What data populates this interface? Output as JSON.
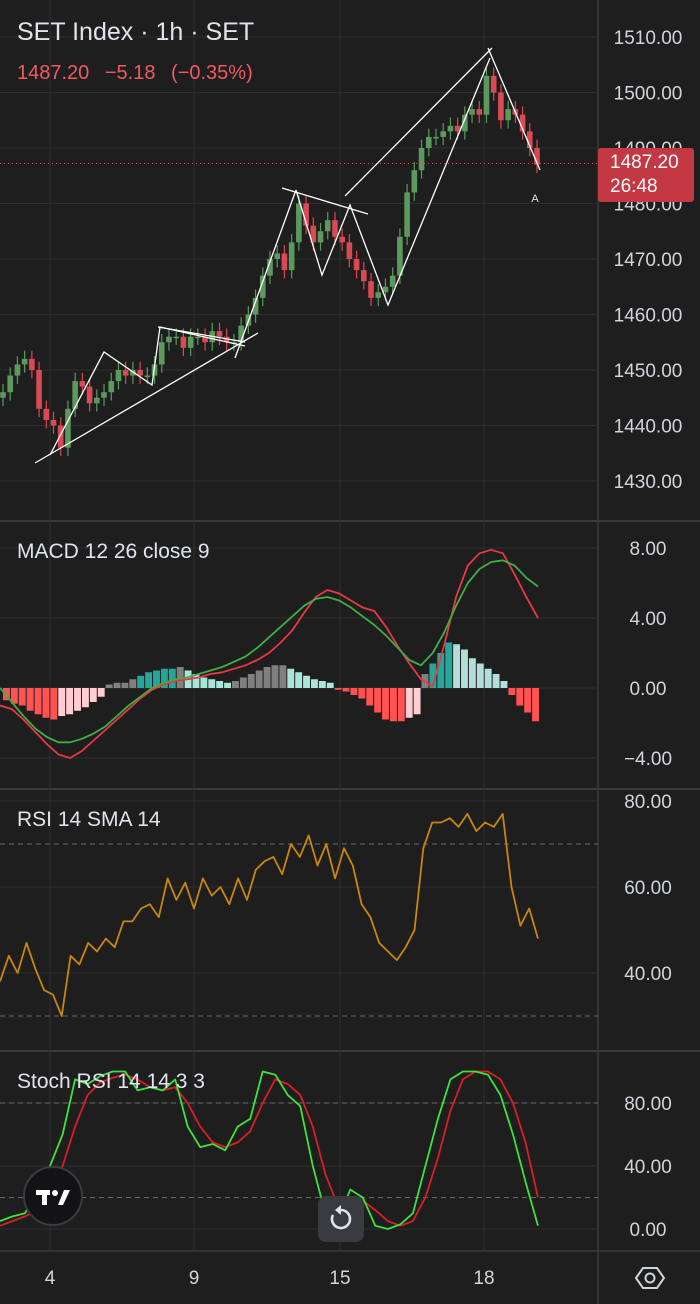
{
  "header": {
    "title": "SET Index · 1h · SET",
    "price": "1487.20",
    "change": "−5.18",
    "change_pct": "(−0.35%)"
  },
  "price_tag": {
    "price": "1487.20",
    "countdown": "26:48"
  },
  "colors": {
    "background": "#1e1e1e",
    "up": "#5b9a5c",
    "down": "#d94a55",
    "grid": "#2e2e2e",
    "axis_text": "#d1d4dc",
    "macd_line": "#e83843",
    "signal_line": "#3fae44",
    "rsi_line": "#c98510",
    "stoch_k": "#3ee23e",
    "stoch_d": "#d81f26"
  },
  "icons": {
    "logo": "tradingview-logo-icon",
    "reset": "reset-icon",
    "settings": "settings-icon"
  },
  "chart_data": [
    {
      "type": "candlestick",
      "title": "SET Index · 1h · SET",
      "ylim": [
        1425,
        1515
      ],
      "yticks": [
        "1430.00",
        "1440.00",
        "1450.00",
        "1460.00",
        "1470.00",
        "1480.00",
        "1490.00",
        "1500.00",
        "1510.00"
      ],
      "xticks": [
        "4",
        "9",
        "15",
        "18"
      ],
      "last_price": 1487.2,
      "annotation": "A",
      "series": [
        {
          "name": "",
          "close": [
            1446,
            1449,
            1451,
            1452,
            1450,
            1443,
            1441,
            1440,
            1436,
            1443,
            1448,
            1447,
            1444,
            1445,
            1446,
            1448,
            1450,
            1449,
            1450,
            1449,
            1449,
            1451,
            1455,
            1456,
            1456,
            1454,
            1456,
            1456,
            1455,
            1457,
            1456,
            1455,
            1455,
            1458,
            1460,
            1463,
            1467,
            1470,
            1471,
            1468,
            1473,
            1480,
            1476,
            1473,
            1475,
            1477,
            1474,
            1473,
            1470,
            1468,
            1466,
            1463,
            1464,
            1465,
            1467,
            1474,
            1482,
            1486,
            1490,
            1492,
            1492,
            1493,
            1494,
            1493,
            1496,
            1497,
            1496,
            1503,
            1500,
            1495,
            1497,
            1496,
            1493,
            1490,
            1487
          ]
        }
      ]
    },
    {
      "type": "line",
      "title": "MACD 12 26 close 9",
      "ylim": [
        -5,
        9
      ],
      "yticks": [
        "−4.00",
        "0.00",
        "4.00",
        "8.00"
      ],
      "series": [
        {
          "name": "MACD",
          "values": [
            -1.0,
            -1.2,
            -1.8,
            -2.5,
            -3.2,
            -3.8,
            -4.0,
            -3.6,
            -3.0,
            -2.4,
            -1.8,
            -1.2,
            -0.6,
            -0.1,
            0.2,
            0.4,
            0.5,
            0.6,
            0.8,
            0.9,
            1.1,
            1.3,
            1.6,
            2.0,
            2.6,
            3.3,
            4.3,
            5.2,
            5.6,
            5.4,
            5.0,
            4.6,
            4.4,
            3.5,
            2.4,
            1.4,
            0.5,
            0.1,
            2.5,
            5.2,
            7.0,
            7.7,
            7.9,
            7.7,
            6.5,
            5.2,
            4.0
          ]
        },
        {
          "name": "Signal",
          "values": [
            0.0,
            -0.8,
            -1.6,
            -2.3,
            -2.8,
            -3.1,
            -3.1,
            -2.9,
            -2.6,
            -2.2,
            -1.6,
            -1.0,
            -0.5,
            0.0,
            0.3,
            0.5,
            0.6,
            0.8,
            1.0,
            1.2,
            1.5,
            1.8,
            2.3,
            2.9,
            3.5,
            4.1,
            4.7,
            5.1,
            5.2,
            5.0,
            4.6,
            4.1,
            3.6,
            3.0,
            2.3,
            1.6,
            1.3,
            2.0,
            3.2,
            4.7,
            6.0,
            6.8,
            7.2,
            7.3,
            7.0,
            6.3,
            5.8
          ]
        }
      ],
      "histogram": [
        -0.7,
        -0.9,
        -1.0,
        -1.3,
        -1.5,
        -1.7,
        -1.8,
        -1.6,
        -1.5,
        -1.3,
        -1.1,
        -0.8,
        -0.5,
        0.2,
        0.3,
        0.3,
        0.5,
        0.7,
        0.9,
        1.0,
        1.1,
        1.1,
        1.2,
        1.0,
        0.8,
        0.6,
        0.5,
        0.4,
        0.3,
        0.4,
        0.6,
        0.8,
        1.0,
        1.2,
        1.3,
        1.3,
        1.1,
        0.9,
        0.7,
        0.5,
        0.4,
        0.3,
        -0.1,
        -0.2,
        -0.4,
        -0.6,
        -1.0,
        -1.4,
        -1.8,
        -1.9,
        -1.9,
        -1.7,
        -1.5,
        0.8,
        1.4,
        2.0,
        2.6,
        2.5,
        2.2,
        1.7,
        1.4,
        1.1,
        0.8,
        0.4,
        -0.4,
        -1.0,
        -1.4,
        -1.9
      ]
    },
    {
      "type": "line",
      "title": "RSI 14 SMA 14",
      "ylim": [
        25,
        82
      ],
      "yticks": [
        "40.00",
        "60.00",
        "80.00"
      ],
      "bands": [
        30,
        70
      ],
      "series": [
        {
          "name": "RSI",
          "values": [
            38,
            44,
            40,
            47,
            41,
            36,
            35,
            30,
            44,
            42,
            47,
            45,
            48,
            46,
            52,
            52,
            55,
            56,
            53,
            62,
            57,
            61,
            55,
            62,
            58,
            60,
            56,
            62,
            57,
            64,
            66,
            67,
            63,
            70,
            67,
            72,
            65,
            70,
            62,
            69,
            65,
            56,
            53,
            47,
            45,
            43,
            46,
            50,
            69,
            75,
            75,
            76,
            74,
            77,
            73,
            75,
            74,
            77,
            60,
            51,
            55,
            48
          ]
        }
      ]
    },
    {
      "type": "line",
      "title": "Stoch RSI 14 14 3 3",
      "ylim": [
        -5,
        105
      ],
      "yticks": [
        "0.00",
        "40.00",
        "80.00"
      ],
      "bands": [
        20,
        80
      ],
      "series": [
        {
          "name": "K",
          "values": [
            5,
            8,
            10,
            25,
            40,
            60,
            95,
            92,
            97,
            100,
            100,
            88,
            90,
            88,
            95,
            65,
            52,
            54,
            50,
            65,
            70,
            100,
            98,
            85,
            78,
            40,
            10,
            5,
            25,
            20,
            2,
            0,
            3,
            10,
            40,
            70,
            95,
            100,
            100,
            98,
            85,
            60,
            30,
            2
          ]
        },
        {
          "name": "D",
          "values": [
            2,
            5,
            8,
            12,
            25,
            40,
            65,
            85,
            93,
            96,
            98,
            95,
            90,
            88,
            90,
            80,
            65,
            55,
            52,
            55,
            62,
            80,
            95,
            92,
            85,
            65,
            35,
            15,
            12,
            18,
            12,
            5,
            2,
            5,
            20,
            45,
            75,
            95,
            100,
            100,
            95,
            80,
            55,
            20
          ]
        }
      ]
    }
  ]
}
